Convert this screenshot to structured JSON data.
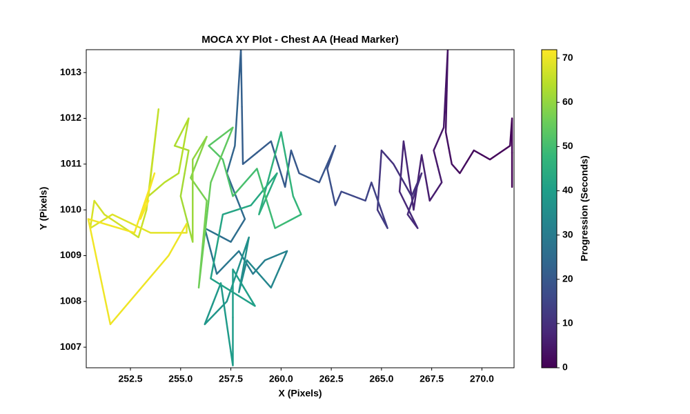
{
  "chart_data": {
    "type": "line",
    "title": "MOCA XY Plot - Chest AA (Head Marker)",
    "xlabel": "X (Pixels)",
    "ylabel": "Y (Pixels)",
    "colorbar_label": "Progression (Seconds)",
    "colormap": "viridis",
    "line_width": 2.5,
    "x": [
      271.5,
      271.5,
      271.4,
      270.4,
      269.6,
      268.9,
      268.5,
      268.2,
      268.3,
      268.1,
      267.6,
      268.0,
      267.4,
      267.0,
      266.6,
      266.1,
      265.9,
      266.8,
      266.3,
      267.0,
      266.5,
      265.6,
      265.0,
      264.8,
      265.3,
      264.5,
      264.2,
      263.0,
      262.7,
      262.3,
      262.7,
      261.9,
      260.9,
      260.5,
      260.2,
      259.5,
      258.1,
      258.0,
      257.7,
      257.3,
      258.2,
      257.5,
      256.2,
      256.8,
      257.9,
      258.6,
      259.2,
      260.3,
      259.5,
      258.3,
      257.9,
      258.4,
      257.3,
      256.2,
      257.0,
      257.4,
      257.6,
      257.6,
      258.7,
      256.5,
      257.1,
      258.5,
      259.8,
      258.9,
      260.0,
      260.6,
      261.0,
      259.7,
      258.8,
      257.6,
      257.1,
      256.4,
      257.6,
      256.5,
      255.9,
      256.3,
      255.5,
      256.3,
      255.6,
      255.6,
      255.0,
      255.4,
      254.7,
      255.4,
      254.9,
      254.2,
      253.4,
      253.9,
      253.3,
      252.9,
      251.2,
      250.7,
      250.5,
      251.6,
      253.5,
      255.3,
      255.3,
      254.4,
      251.5,
      250.4,
      252.7,
      253.7,
      253.0,
      253.4
    ],
    "y": [
      1010.5,
      1012,
      1011.4,
      1011.1,
      1011.3,
      1010.8,
      1011.0,
      1011.7,
      1013.5,
      1011.8,
      1011.3,
      1010.6,
      1010.2,
      1011.2,
      1010.0,
      1011.5,
      1010.4,
      1009.6,
      1009.9,
      1010.8,
      1010.3,
      1011.0,
      1011.3,
      1010.0,
      1009.6,
      1010.6,
      1010.2,
      1010.4,
      1010.1,
      1010.9,
      1011.4,
      1010.6,
      1010.8,
      1011.3,
      1010.5,
      1011.5,
      1011.0,
      1013.5,
      1011.4,
      1010.8,
      1009.8,
      1009.3,
      1009.6,
      1008.6,
      1009.1,
      1008.6,
      1008.9,
      1009.1,
      1008.3,
      1008.9,
      1008.2,
      1009.4,
      1008.0,
      1007.5,
      1008.4,
      1007.2,
      1006.6,
      1008.7,
      1007.9,
      1008.5,
      1009.9,
      1010.1,
      1010.8,
      1009.9,
      1011.7,
      1010.3,
      1009.9,
      1009.6,
      1010.9,
      1010.3,
      1011.1,
      1011.4,
      1011.8,
      1010.6,
      1008.3,
      1010.2,
      1010.7,
      1011.6,
      1011.1,
      1009.3,
      1010.3,
      1011.3,
      1011.4,
      1012.0,
      1010.8,
      1010.6,
      1010.3,
      1012.2,
      1010.0,
      1009.4,
      1009.9,
      1010.2,
      1009.6,
      1009.9,
      1009.5,
      1009.5,
      1009.7,
      1009.0,
      1007.5,
      1009.8,
      1009.5,
      1010.8,
      1009.8,
      1010.2
    ],
    "color_values": [
      0,
      0.5,
      1,
      1.5,
      2,
      2.5,
      3,
      3.5,
      4,
      4.5,
      5,
      5.5,
      6,
      6.5,
      7,
      7.5,
      8,
      8.5,
      9,
      9.5,
      10,
      10.5,
      11,
      12,
      13,
      14,
      15,
      16,
      17,
      18,
      18.5,
      19,
      19.5,
      20,
      20.5,
      21,
      21.5,
      22,
      23,
      24,
      25,
      26,
      27,
      28,
      29,
      30,
      31,
      32,
      33,
      34,
      35,
      36,
      37,
      38,
      38.5,
      39,
      39.5,
      40,
      40.5,
      41,
      42,
      43,
      44,
      45,
      46,
      47,
      48,
      49,
      50,
      51,
      52,
      53,
      54,
      55,
      56,
      57,
      58,
      59,
      60,
      61,
      62,
      62.5,
      63,
      63.5,
      64,
      64.5,
      65,
      65.5,
      66,
      66.5,
      67,
      67.5,
      68,
      68.5,
      69,
      69.5,
      70,
      70.2,
      70.4,
      70.6,
      70.8,
      71,
      71.3,
      71.6
    ],
    "xlim": [
      250.3,
      271.6
    ],
    "ylim": [
      1006.55,
      1013.5
    ],
    "clim": [
      0,
      71.9
    ],
    "xticks": [
      252.5,
      {
        "value": 255,
        "label": "255.0"
      },
      257.5,
      {
        "value": 260,
        "label": "260.0"
      },
      262.5,
      {
        "value": 265,
        "label": "265.0"
      },
      267.5,
      {
        "value": 270,
        "label": "270.0"
      }
    ],
    "yticks": [
      1007,
      1008,
      1009,
      1010,
      1011,
      1012,
      1013
    ],
    "colorbar_ticks": [
      0,
      10,
      20,
      30,
      40,
      50,
      60,
      70
    ]
  }
}
